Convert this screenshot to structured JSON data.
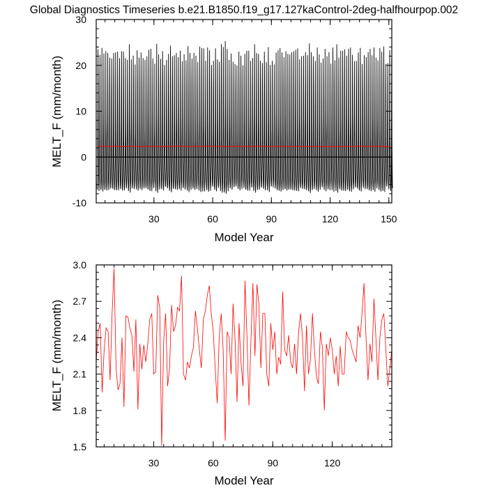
{
  "title": "Global Diagnostics Timeseries b.e21.B1850.f19_g17.127kaControl-2deg-halfhourpop.002",
  "colors": {
    "monthly": "#000000",
    "annual": "#ff0000",
    "zero_line": "#000000",
    "frame": "#000000"
  },
  "chart_data": [
    {
      "type": "line",
      "xlabel": "Model Year",
      "ylabel": "MELT_F (mm/month)",
      "xlim": [
        0.5,
        151.5
      ],
      "ylim": [
        -10,
        30
      ],
      "xticks": [
        30,
        60,
        90,
        120,
        150
      ],
      "yticks": [
        -10,
        0,
        10,
        20,
        30
      ],
      "reference_line_y": 0,
      "grid": false,
      "legend": "none",
      "series": [
        {
          "role": "monthly",
          "color": "#000000",
          "monthly_shape_by_calendar_month": [
            -6.5,
            -5.5,
            -3.5,
            1.0,
            8.0,
            21.5,
            14.0,
            3.5,
            -1.5,
            -4.0,
            -6.0,
            -6.8
          ],
          "peak_values_by_year": [
            23.5,
            22.3,
            23.8,
            22.6,
            23.1,
            22.7,
            21.7,
            21.5,
            22.7,
            22.8,
            23.0,
            21.6,
            23.1,
            23.0,
            21.6,
            21.2,
            24.6,
            21.3,
            22.1,
            20.2,
            23.3,
            21.7,
            22.8,
            21.6,
            21.2,
            22.0,
            23.4,
            23.6,
            21.5,
            20.4,
            24.7,
            22.4,
            21.4,
            23.1,
            20.1,
            21.2,
            22.5,
            24.3,
            22.0,
            22.2,
            22.7,
            21.8,
            23.2,
            20.9,
            22.4,
            21.1,
            24.2,
            22.7,
            21.5,
            22.7,
            22.1,
            20.7,
            24.1,
            23.8,
            23.7,
            21.0,
            23.9,
            23.3,
            20.1,
            21.0,
            23.7,
            21.3,
            20.8,
            24.6,
            24.0,
            25.3,
            23.6,
            21.2,
            22.6,
            20.8,
            20.3,
            20.0,
            23.0,
            22.1,
            20.0,
            22.5,
            23.2,
            23.2,
            21.0,
            21.6,
            24.6,
            22.7,
            22.5,
            21.0,
            20.5,
            23.0,
            20.7,
            24.0,
            20.1,
            21.0,
            20.2,
            22.8,
            23.3,
            23.8,
            22.8,
            21.8,
            23.1,
            22.5,
            22.4,
            22.9,
            23.1,
            23.4,
            23.7,
            21.3,
            22.0,
            22.1,
            22.9,
            22.2,
            24.8,
            22.9,
            22.0,
            21.0,
            23.9,
            22.4,
            20.6,
            21.5,
            23.6,
            22.0,
            22.9,
            20.4,
            23.9,
            21.1,
            24.6,
            21.7,
            23.2,
            23.2,
            23.5,
            22.1,
            23.6,
            23.9,
            22.3,
            20.9,
            21.0,
            22.8,
            23.8,
            20.3,
            22.2,
            21.8,
            22.9,
            23.6,
            22.2,
            23.9,
            21.7,
            21.1,
            23.8,
            23.0,
            24.1,
            20.3,
            20.5,
            23.3,
            21.4
          ]
        },
        {
          "role": "annual_mean",
          "color": "#ff0000",
          "approx_level": 2.3
        }
      ]
    },
    {
      "type": "line",
      "xlabel": "Model Year",
      "ylabel": "MELT_F (mm/month)",
      "xlim": [
        1,
        150
      ],
      "ylim": [
        1.5,
        3.0
      ],
      "xticks": [
        30,
        60,
        90,
        120
      ],
      "yticks": [
        1.5,
        1.8,
        2.1,
        2.4,
        2.7,
        3.0
      ],
      "grid": false,
      "legend": "none",
      "series": [
        {
          "role": "annual_mean",
          "color": "#ff0000",
          "x_start": 1,
          "values": [
            2.2,
            2.45,
            2.52,
            1.95,
            2.3,
            2.48,
            2.45,
            2.05,
            2.6,
            2.97,
            2.15,
            1.97,
            2.02,
            2.4,
            1.83,
            2.58,
            2.57,
            2.48,
            2.42,
            2.12,
            2.55,
            1.81,
            2.35,
            2.14,
            2.34,
            2.2,
            2.35,
            2.55,
            2.6,
            2.1,
            2.12,
            2.75,
            2.65,
            1.51,
            2.38,
            2.6,
            2.0,
            2.15,
            2.67,
            2.45,
            2.5,
            2.65,
            2.62,
            2.91,
            2.1,
            2.05,
            2.2,
            2.15,
            2.25,
            2.32,
            2.62,
            2.48,
            2.3,
            2.15,
            2.55,
            2.62,
            2.75,
            2.83,
            2.6,
            2.45,
            2.15,
            1.86,
            2.4,
            2.6,
            2.3,
            1.55,
            2.45,
            2.4,
            2.1,
            2.68,
            2.38,
            1.87,
            2.52,
            2.2,
            2.0,
            2.87,
            2.4,
            1.84,
            2.38,
            2.85,
            2.25,
            2.84,
            2.68,
            2.15,
            2.6,
            2.6,
            2.1,
            2.0,
            2.52,
            2.3,
            2.45,
            2.1,
            2.24,
            2.18,
            2.78,
            2.3,
            2.25,
            2.42,
            2.2,
            2.15,
            2.35,
            2.1,
            2.45,
            2.6,
            2.4,
            1.96,
            2.5,
            2.1,
            2.22,
            2.6,
            2.3,
            2.08,
            2.02,
            2.45,
            2.32,
            1.8,
            2.35,
            2.25,
            2.4,
            2.3,
            2.1,
            2.25,
            2.0,
            2.33,
            2.1,
            2.1,
            2.45,
            2.4,
            2.38,
            2.3,
            2.25,
            2.2,
            2.5,
            2.4,
            2.6,
            2.85,
            2.4,
            2.05,
            2.35,
            2.2,
            2.72,
            2.4,
            2.05,
            2.4,
            2.55,
            2.6,
            2.3,
            2.0,
            2.15,
            2.3
          ]
        }
      ]
    }
  ]
}
